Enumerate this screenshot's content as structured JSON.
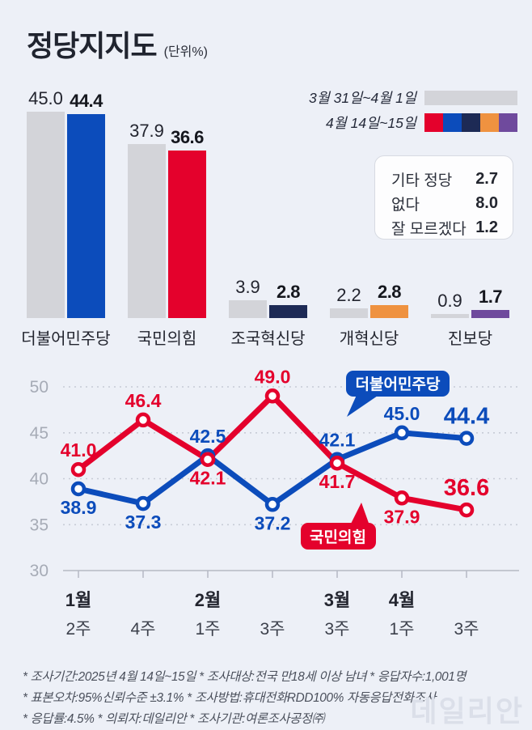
{
  "header": {
    "title": "정당지지도",
    "unit": "(단위%)"
  },
  "legend": [
    {
      "label": "3월 31일~4월 1일",
      "colors": [
        "#d3d4d9"
      ]
    },
    {
      "label": "4월 14일~15일",
      "colors": [
        "#e4012c",
        "#0c4cbb",
        "#1d2a55",
        "#ef9240",
        "#6f4a9d"
      ]
    }
  ],
  "others_box": {
    "rows": [
      {
        "label": "기타 정당",
        "value": "2.7"
      },
      {
        "label": "없다",
        "value": "8.0"
      },
      {
        "label": "잘 모르겠다",
        "value": "1.2"
      }
    ]
  },
  "chart_data": [
    {
      "type": "bar",
      "title": "정당지지도 (단위%)",
      "categories": [
        "더불어민주당",
        "국민의힘",
        "조국혁신당",
        "개혁신당",
        "진보당"
      ],
      "series": [
        {
          "name": "3월 31일~4월 1일",
          "color": "#d3d4d9",
          "values": [
            45.0,
            37.9,
            3.9,
            2.2,
            0.9
          ]
        },
        {
          "name": "4월 14일~15일",
          "colors": [
            "#0c4cbb",
            "#e4012c",
            "#1d2a55",
            "#ef9240",
            "#6f4a9d"
          ],
          "values": [
            44.4,
            36.6,
            2.8,
            2.8,
            1.7
          ]
        }
      ],
      "ylim": [
        0,
        50
      ],
      "grid": false
    },
    {
      "type": "line",
      "x_ticks": [
        {
          "month": "1월",
          "week": "2주"
        },
        {
          "month": "",
          "week": "4주"
        },
        {
          "month": "2월",
          "week": "1주"
        },
        {
          "month": "",
          "week": "3주"
        },
        {
          "month": "3월",
          "week": "3주"
        },
        {
          "month": "4월",
          "week": "1주"
        },
        {
          "month": "",
          "week": "3주"
        }
      ],
      "y_ticks": [
        50,
        45,
        40,
        35,
        30
      ],
      "ylim": [
        30,
        52
      ],
      "grid": true,
      "series": [
        {
          "name": "더불어민주당",
          "color": "#0c4cbb",
          "values": [
            38.9,
            37.3,
            42.5,
            37.2,
            42.1,
            45.0,
            44.4
          ],
          "label_side": [
            "below",
            "below",
            "above",
            "below",
            "above",
            "above",
            "above"
          ]
        },
        {
          "name": "국민의힘",
          "color": "#e4012c",
          "values": [
            41.0,
            46.4,
            42.1,
            49.0,
            41.7,
            37.9,
            36.6
          ],
          "label_side": [
            "above",
            "above",
            "below",
            "above",
            "below",
            "below",
            "above"
          ]
        }
      ],
      "badges": [
        {
          "text": "더불어민주당",
          "color": "#0c4cbb"
        },
        {
          "text": "국민의힘",
          "color": "#e4012c"
        }
      ]
    }
  ],
  "footnotes": [
    "* 조사기간:2025년 4월 14일~15일  * 조사대상:전국 만18세 이상 남녀  * 응답자수:1,001명",
    "* 표본오차:95%신뢰수준 ±3.1%  * 조사방법:휴대전화RDD100% 자동응답전화조사",
    "* 응답률:4.5%  * 의뢰자:데일리안  * 조사기관:여론조사공정㈜"
  ],
  "watermark": "데일리안"
}
